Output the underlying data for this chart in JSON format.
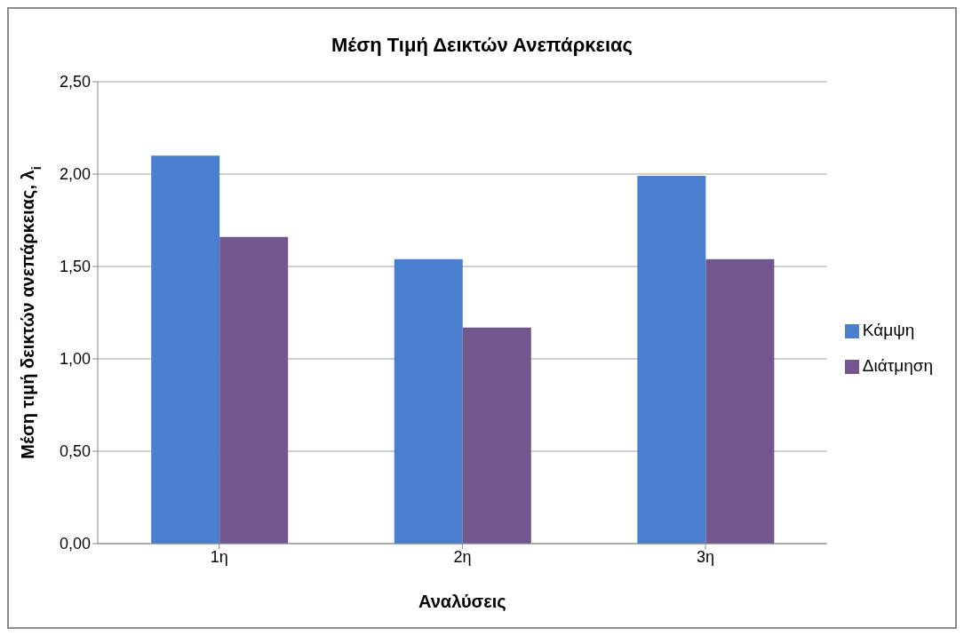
{
  "chart_data": {
    "type": "bar",
    "title": "Μέση Τιμή Δεικτών Ανεπάρκειας",
    "xlabel": "Αναλύσεις",
    "ylabel": "Μέση τιμή δεικτών ανεπάρκειας, λ$_{i}$",
    "categories": [
      "1η",
      "2η",
      "3η"
    ],
    "series": [
      {
        "name": "Κάμψη",
        "color": "#4a7fd0",
        "values": [
          2.1,
          1.54,
          1.99
        ]
      },
      {
        "name": "Διάτμηση",
        "color": "#72578f",
        "values": [
          1.66,
          1.17,
          1.54
        ]
      }
    ],
    "ylim": [
      0,
      2.5
    ],
    "yticks": [
      {
        "value": 0,
        "label": "0,00"
      },
      {
        "value": 0.5,
        "label": "0,50"
      },
      {
        "value": 1,
        "label": "1,00"
      },
      {
        "value": 1.5,
        "label": "1,50"
      },
      {
        "value": 2,
        "label": "2,00"
      },
      {
        "value": 2.5,
        "label": "2,50"
      }
    ],
    "grid": "y",
    "legend": "right"
  }
}
